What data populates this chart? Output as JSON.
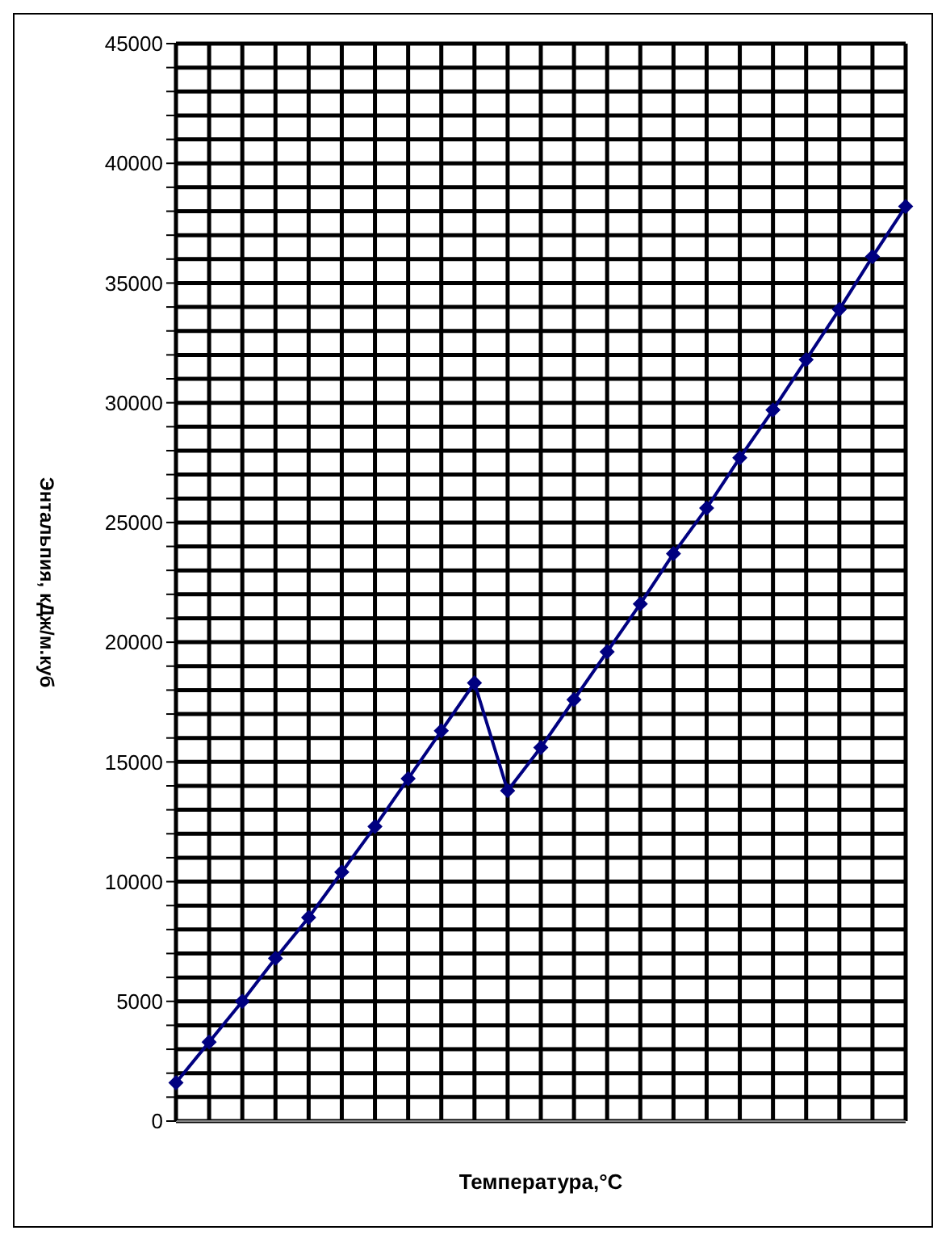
{
  "chart_data": {
    "type": "line",
    "xlabel": "Температура,°C",
    "ylabel": "Энтальпия, кДж/м.куб",
    "categories": [
      null,
      null,
      null,
      null,
      null,
      null,
      null,
      null,
      null,
      null,
      null,
      null,
      null,
      null,
      null,
      null,
      null,
      null,
      null,
      null,
      null,
      null,
      null
    ],
    "series": [
      {
        "color": "#000080",
        "values": [
          1600,
          3300,
          5000,
          6800,
          8500,
          10400,
          12300,
          14300,
          16300,
          18300,
          13800,
          15600,
          17600,
          19600,
          21600,
          23700,
          25600,
          27700,
          29700,
          31800,
          33900,
          36100,
          38200
        ]
      }
    ],
    "ylim": [
      0,
      45000
    ],
    "yticks": [
      0,
      {
        "value": 1000,
        "label": null
      },
      {
        "value": 2000,
        "label": null
      },
      {
        "value": 3000,
        "label": null
      },
      {
        "value": 4000,
        "label": null
      },
      5000,
      {
        "value": 6000,
        "label": null
      },
      {
        "value": 7000,
        "label": null
      },
      {
        "value": 8000,
        "label": null
      },
      {
        "value": 9000,
        "label": null
      },
      10000,
      {
        "value": 11000,
        "label": null
      },
      {
        "value": 12000,
        "label": null
      },
      {
        "value": 13000,
        "label": null
      },
      {
        "value": 14000,
        "label": null
      },
      15000,
      {
        "value": 16000,
        "label": null
      },
      {
        "value": 17000,
        "label": null
      },
      {
        "value": 18000,
        "label": null
      },
      {
        "value": 19000,
        "label": null
      },
      20000,
      {
        "value": 21000,
        "label": null
      },
      {
        "value": 22000,
        "label": null
      },
      {
        "value": 23000,
        "label": null
      },
      {
        "value": 24000,
        "label": null
      },
      25000,
      {
        "value": 26000,
        "label": null
      },
      {
        "value": 27000,
        "label": null
      },
      {
        "value": 28000,
        "label": null
      },
      {
        "value": 29000,
        "label": null
      },
      30000,
      {
        "value": 31000,
        "label": null
      },
      {
        "value": 32000,
        "label": null
      },
      {
        "value": 33000,
        "label": null
      },
      {
        "value": 34000,
        "label": null
      },
      35000,
      {
        "value": 36000,
        "label": null
      },
      {
        "value": 37000,
        "label": null
      },
      {
        "value": 38000,
        "label": null
      },
      {
        "value": 39000,
        "label": null
      },
      40000,
      {
        "value": 41000,
        "label": null
      },
      {
        "value": 42000,
        "label": null
      },
      {
        "value": 43000,
        "label": null
      },
      {
        "value": 44000,
        "label": null
      },
      45000
    ],
    "grid": true,
    "marker": "diamond",
    "line_style": "solid",
    "legend": false
  }
}
